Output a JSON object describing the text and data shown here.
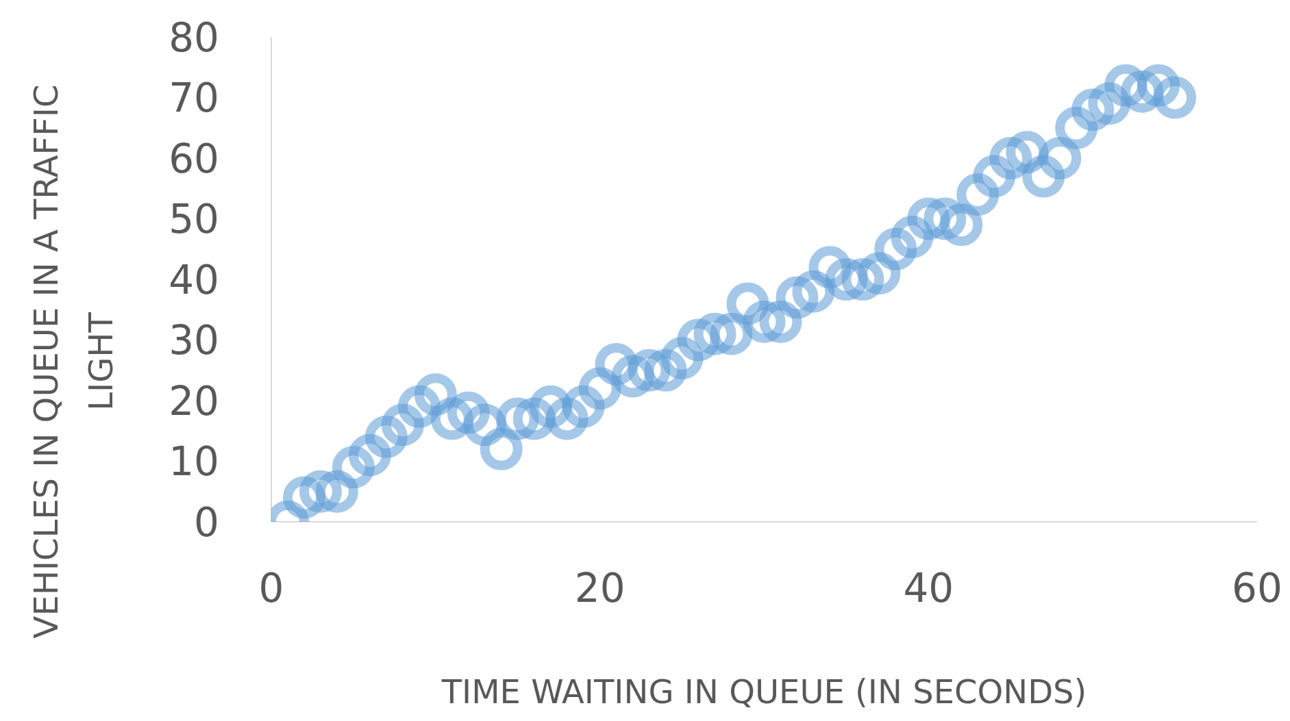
{
  "chart_data": {
    "type": "scatter",
    "xlabel": "TIME WAITING IN QUEUE (IN SECONDS)",
    "ylabel": "VEHICLES IN QUEUE IN A TRAFFIC LIGHT",
    "x": [
      1,
      2,
      3,
      4,
      5,
      6,
      7,
      8,
      9,
      10,
      11,
      12,
      13,
      14,
      15,
      16,
      17,
      18,
      19,
      20,
      21,
      22,
      23,
      24,
      25,
      26,
      27,
      28,
      29,
      30,
      31,
      32,
      33,
      34,
      35,
      36,
      37,
      38,
      39,
      40,
      41,
      42,
      43,
      44,
      45,
      46,
      47,
      48,
      49,
      50,
      51,
      52,
      53,
      54,
      55
    ],
    "series": [
      {
        "color": "#5b9bd5",
        "values": [
          0,
          4,
          5,
          5,
          9,
          11,
          14,
          16,
          19,
          21,
          17,
          18,
          16,
          12,
          17,
          17,
          19,
          17,
          19,
          22,
          26,
          24,
          25,
          25,
          27,
          30,
          31,
          31,
          36,
          33,
          33,
          37,
          38,
          42,
          40,
          40,
          41,
          45,
          47,
          50,
          50,
          49,
          54,
          57,
          60,
          61,
          57,
          60,
          65,
          68,
          69,
          72,
          71,
          72,
          70
        ]
      }
    ],
    "xlim": [
      0,
      60
    ],
    "xticks": [
      0,
      20,
      40,
      60
    ],
    "ylim": [
      0,
      80
    ],
    "yticks": [
      0,
      10,
      20,
      30,
      40,
      50,
      60,
      70,
      80
    ],
    "grid": false,
    "legend": false,
    "marker": "circle"
  }
}
